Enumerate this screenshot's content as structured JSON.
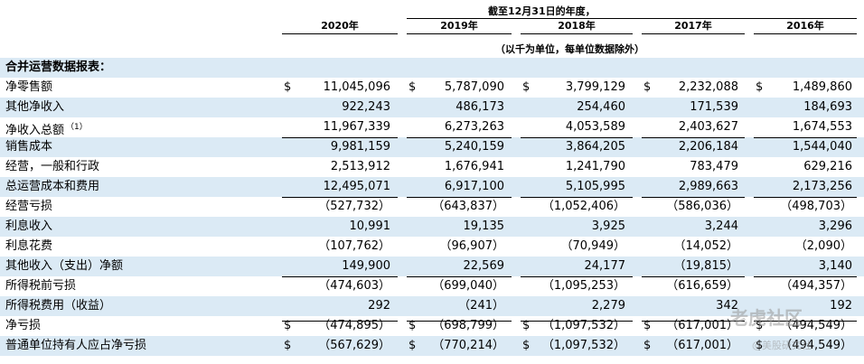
{
  "header": {
    "period_caption": "截至12月31日的年度，",
    "unit_note": "（以千为单位，每单位数据除外）",
    "years": [
      "2020年",
      "2019年",
      "2018年",
      "2017年",
      "2016年"
    ]
  },
  "section_title": "合并运营数据报表：",
  "currency_symbol": "$",
  "rows": [
    {
      "label": "净零售额",
      "note": "",
      "dollar": true,
      "values": [
        "11,045,096",
        "5,787,090",
        "3,799,129",
        "2,232,088",
        "1,489,860"
      ]
    },
    {
      "label": "其他净收入",
      "note": "",
      "dollar": false,
      "values": [
        "922,243",
        "486,173",
        "254,460",
        "171,539",
        "184,693"
      ]
    },
    {
      "label": "净收入总额",
      "note": "（1）",
      "dollar": false,
      "values": [
        "11,967,339",
        "6,273,263",
        "4,053,589",
        "2,403,627",
        "1,674,553"
      ]
    },
    {
      "label": "销售成本",
      "note": "",
      "dollar": false,
      "values": [
        "9,981,159",
        "5,240,159",
        "3,864,205",
        "2,206,184",
        "1,544,040"
      ]
    },
    {
      "label": "经营，一般和行政",
      "note": "",
      "dollar": false,
      "values": [
        "2,513,912",
        "1,676,941",
        "1,241,790",
        "783,479",
        "629,216"
      ]
    },
    {
      "label": "总运营成本和费用",
      "note": "",
      "dollar": false,
      "values": [
        "12,495,071",
        "6,917,100",
        "5,105,995",
        "2,989,663",
        "2,173,256"
      ]
    },
    {
      "label": "经营亏损",
      "note": "",
      "dollar": false,
      "values": [
        "（527,732）",
        "（643,837）",
        "（1,052,406）",
        "（586,036）",
        "（498,703）"
      ]
    },
    {
      "label": "利息收入",
      "note": "",
      "dollar": false,
      "values": [
        "10,991",
        "19,135",
        "3,925",
        "3,244",
        "3,296"
      ]
    },
    {
      "label": "利息花费",
      "note": "",
      "dollar": false,
      "values": [
        "（107,762）",
        "（96,907）",
        "（70,949）",
        "（14,052）",
        "（2,090）"
      ]
    },
    {
      "label": "其他收入（支出）净额",
      "note": "",
      "dollar": false,
      "values": [
        "149,900",
        "22,569",
        "24,177",
        "（19,815）",
        "3,140"
      ]
    },
    {
      "label": "所得税前亏损",
      "note": "",
      "dollar": false,
      "values": [
        "（474,603）",
        "（699,040）",
        "（1,095,253）",
        "（616,659）",
        "（494,357）"
      ]
    },
    {
      "label": "所得税费用（收益）",
      "note": "",
      "dollar": false,
      "values": [
        "292",
        "（241）",
        "2,279",
        "342",
        "192"
      ]
    },
    {
      "label": "净亏损",
      "note": "",
      "dollar": true,
      "values": [
        "（474,895）",
        "（698,799）",
        "（1,097,532）",
        "（617,001）",
        "（494,549）"
      ]
    },
    {
      "label": "普通单位持有人应占净亏损",
      "note": "",
      "dollar": true,
      "values": [
        "（567,629）",
        "（770,214）",
        "（1,097,532）",
        "（617,001）",
        "（494,549）"
      ]
    }
  ],
  "watermark": {
    "main": "老虎社区",
    "sub": "@美股研究社"
  },
  "colors": {
    "row_shade": "#dbeaf5",
    "text": "#000000"
  }
}
